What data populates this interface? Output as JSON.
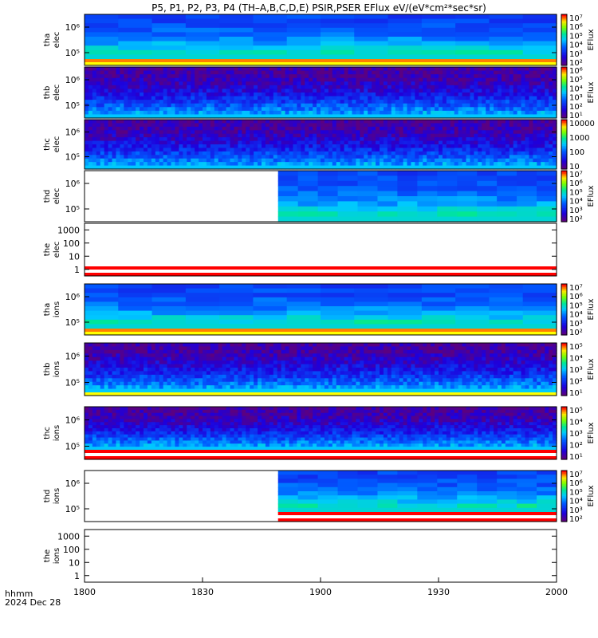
{
  "title": "P5, P1, P2, P3, P4 (TH–A,B,C,D,E) PSIR,PSER EFlux eV/(eV*cm²*sec*sr)",
  "footer": {
    "label_line1": "hhmm",
    "label_line2": "2024 Dec 28"
  },
  "colors": {
    "orange": "#ff7f00",
    "red": "#ff0000",
    "yellow": "#ffff00",
    "black": "#000000"
  },
  "chart_data": {
    "type": "heatmap",
    "x_ticks": [
      "1800",
      "1830",
      "1900",
      "1930",
      "2000"
    ],
    "x_range": [
      "18:00",
      "20:00"
    ],
    "panels": [
      {
        "probe": "tha",
        "species": "elec",
        "yticks": [
          "10⁶",
          "10⁵"
        ],
        "cb_ticks": [
          "10⁷",
          "10⁶",
          "10⁵",
          "10⁴",
          "10³",
          "10²"
        ],
        "cb_label": "EFlux",
        "pattern": "smooth",
        "data_start": 0.0,
        "bottom_bands": [
          "#ff7f00",
          "#ffff00"
        ]
      },
      {
        "probe": "thb",
        "species": "elec",
        "yticks": [
          "10⁶",
          "10⁵"
        ],
        "cb_ticks": [
          "10⁶",
          "10⁵",
          "10⁴",
          "10³",
          "10²",
          "10¹"
        ],
        "cb_label": "EFlux",
        "pattern": "noisy",
        "data_start": 0.0
      },
      {
        "probe": "thc",
        "species": "elec",
        "yticks": [
          "10⁶",
          "10⁵"
        ],
        "cb_ticks": [
          "10000",
          "1000",
          "100",
          "10"
        ],
        "cb_label": "",
        "pattern": "noisy",
        "data_start": 0.0
      },
      {
        "probe": "thd",
        "species": "elec",
        "yticks": [
          "10⁶",
          "10⁵"
        ],
        "cb_ticks": [
          "10⁷",
          "10⁶",
          "10⁵",
          "10⁴",
          "10³",
          "10²"
        ],
        "cb_label": "EFlux",
        "pattern": "smooth",
        "data_start": 0.41
      },
      {
        "probe": "the",
        "species": "elec",
        "yticks": [
          "1000",
          "100",
          "10",
          "1"
        ],
        "cb_ticks": [],
        "cb_label": "",
        "pattern": "empty",
        "data_start": 0.0,
        "bottom_bands": [
          "#ff0000",
          "#ffffff",
          "#ff0000"
        ]
      },
      {
        "probe": "tha",
        "species": "ions",
        "yticks": [
          "10⁶",
          "10⁵"
        ],
        "cb_ticks": [
          "10⁷",
          "10⁶",
          "10⁵",
          "10⁴",
          "10³",
          "10²"
        ],
        "cb_label": "EFlux",
        "pattern": "smooth",
        "data_start": 0.0,
        "bottom_bands": [
          "#ff7f00",
          "#ffff00"
        ]
      },
      {
        "probe": "thb",
        "species": "ions",
        "yticks": [
          "10⁶",
          "10⁵"
        ],
        "cb_ticks": [
          "10⁵",
          "10⁴",
          "10³",
          "10²",
          "10¹"
        ],
        "cb_label": "EFlux",
        "pattern": "noisy",
        "data_start": 0.0,
        "bottom_bands": [
          "#ffff00"
        ]
      },
      {
        "probe": "thc",
        "species": "ions",
        "yticks": [
          "10⁶",
          "10⁵"
        ],
        "cb_ticks": [
          "10⁵",
          "10⁴",
          "10³",
          "10²",
          "10¹"
        ],
        "cb_label": "EFlux",
        "pattern": "noisy",
        "data_start": 0.0,
        "bottom_bands": [
          "#ff0000",
          "#ffffff",
          "#ff0000"
        ]
      },
      {
        "probe": "thd",
        "species": "ions",
        "yticks": [
          "10⁶",
          "10⁵"
        ],
        "cb_ticks": [
          "10⁷",
          "10⁶",
          "10⁵",
          "10⁴",
          "10³",
          "10²"
        ],
        "cb_label": "EFlux",
        "pattern": "smooth",
        "data_start": 0.41,
        "bottom_bands": [
          "#ff0000",
          "#ffffff",
          "#ff0000"
        ]
      },
      {
        "probe": "the",
        "species": "ions",
        "yticks": [
          "1000",
          "100",
          "10",
          "1"
        ],
        "cb_ticks": [],
        "cb_label": "",
        "pattern": "empty",
        "data_start": 0.0
      }
    ]
  }
}
